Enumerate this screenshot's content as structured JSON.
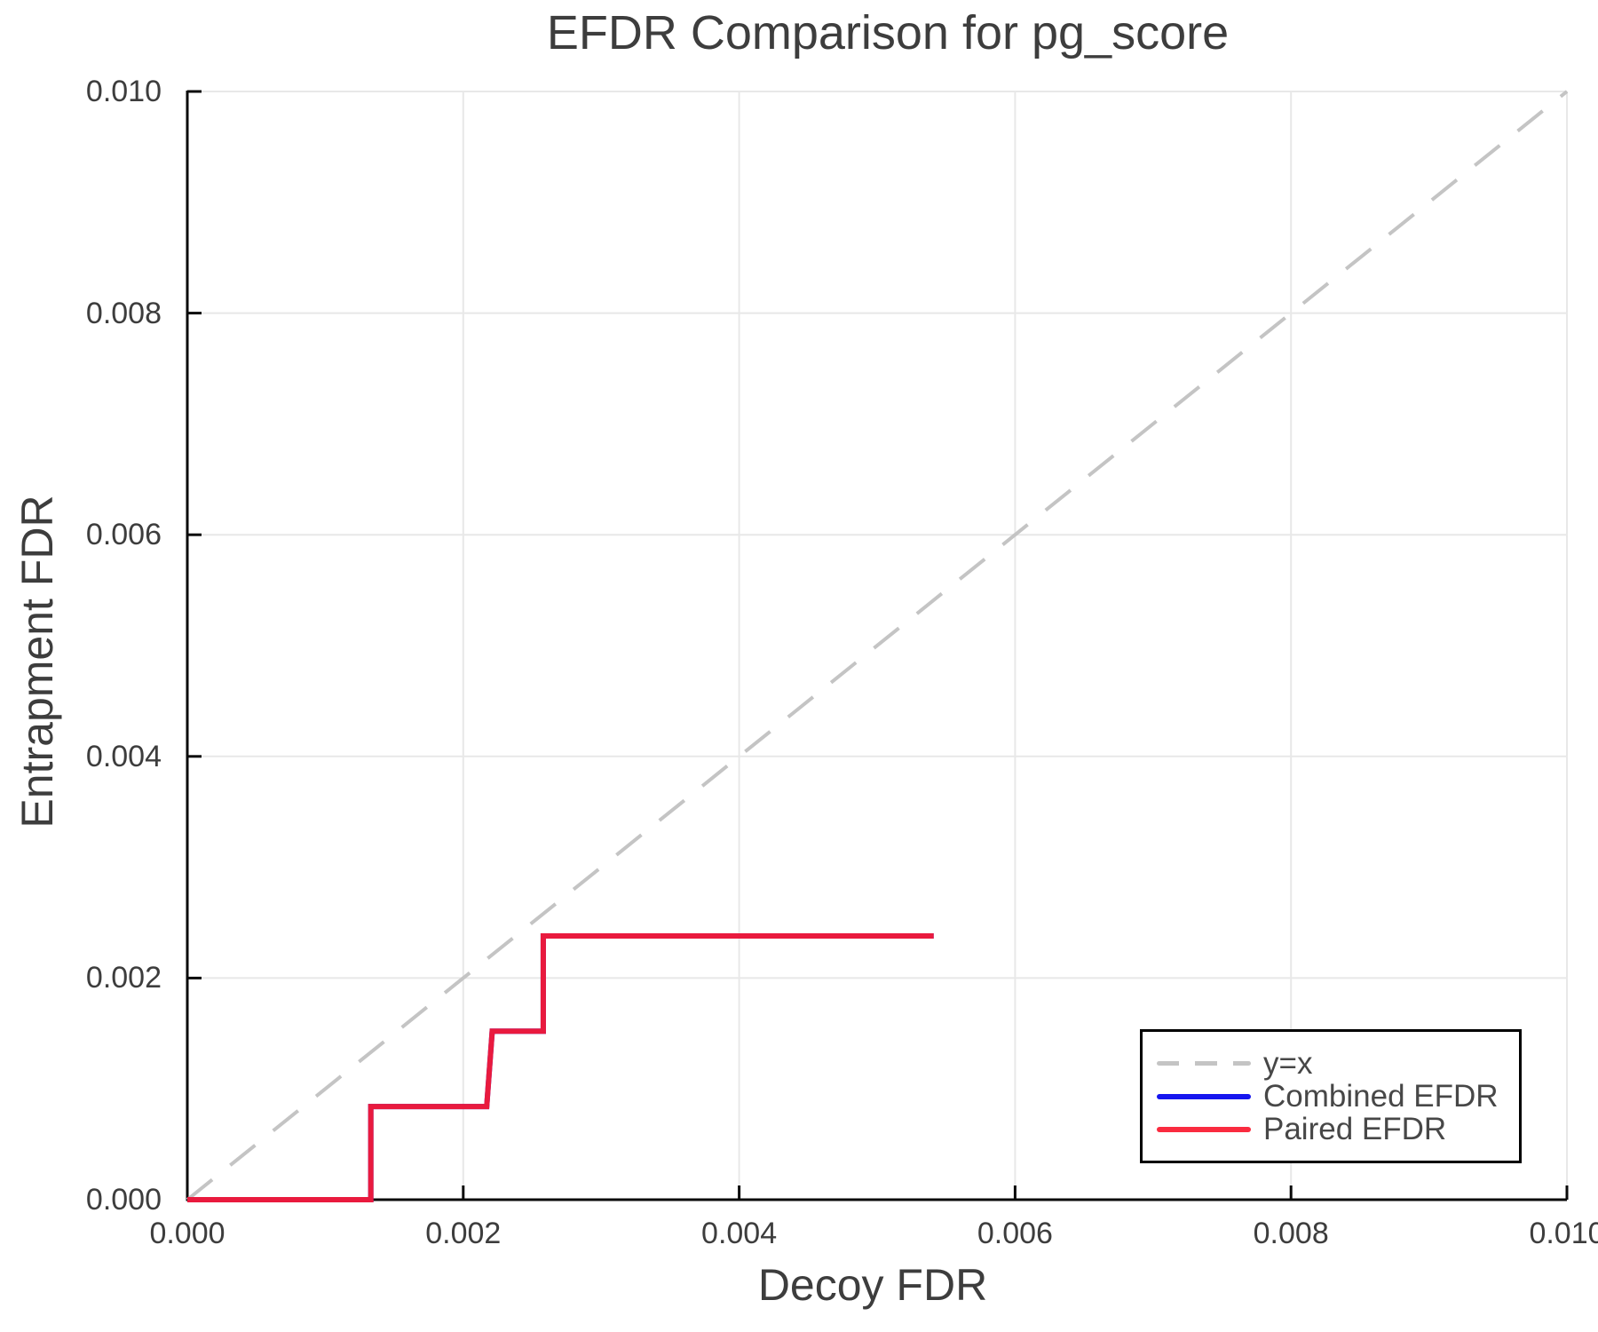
{
  "title": "EFDR Comparison for pg_score",
  "axes": {
    "xlabel": "Decoy FDR",
    "ylabel": "Entrapment FDR",
    "x_tick_labels": [
      "0.000",
      "0.002",
      "0.004",
      "0.006",
      "0.008",
      "0.010"
    ],
    "y_tick_labels": [
      "0.000",
      "0.002",
      "0.004",
      "0.006",
      "0.008",
      "0.010"
    ],
    "x_tick_values": [
      0,
      0.002,
      0.004,
      0.006,
      0.008,
      0.01
    ],
    "y_tick_values": [
      0,
      0.002,
      0.004,
      0.006,
      0.008,
      0.01
    ]
  },
  "legend": {
    "items": [
      {
        "label": "y=x",
        "color": "#c4c4c4",
        "style": "dashed"
      },
      {
        "label": "Combined EFDR",
        "color": "#1515ef",
        "style": "solid"
      },
      {
        "label": "Paired EFDR",
        "color": "#fa1b30",
        "style": "solid"
      }
    ]
  },
  "chart_data": {
    "type": "line",
    "title": "EFDR Comparison for pg_score",
    "xlabel": "Decoy FDR",
    "ylabel": "Entrapment FDR",
    "xlim": [
      0,
      0.01
    ],
    "ylim": [
      0,
      0.01
    ],
    "grid": true,
    "legend_position": "lower-right",
    "series": [
      {
        "name": "y=x",
        "color": "#c4c4c4",
        "style": "dashed",
        "x": [
          0,
          0.01
        ],
        "y": [
          0,
          0.01
        ]
      },
      {
        "name": "Combined EFDR",
        "color": "#1515ef",
        "style": "solid",
        "note": "coincides with Paired EFDR curve; almost entirely hidden beneath the red line",
        "x": [
          0,
          0.00133,
          0.00133,
          0.00217,
          0.00221,
          0.00258,
          0.00258,
          0.00541
        ],
        "y": [
          0,
          0,
          0.00084,
          0.00084,
          0.00152,
          0.00152,
          0.00238,
          0.00238
        ]
      },
      {
        "name": "Paired EFDR",
        "color": "#fa1b30",
        "style": "solid",
        "x": [
          0,
          0.00133,
          0.00133,
          0.00217,
          0.00221,
          0.00258,
          0.00258,
          0.00541
        ],
        "y": [
          0,
          0,
          0.00084,
          0.00084,
          0.00152,
          0.00152,
          0.00238,
          0.00238
        ]
      }
    ]
  }
}
